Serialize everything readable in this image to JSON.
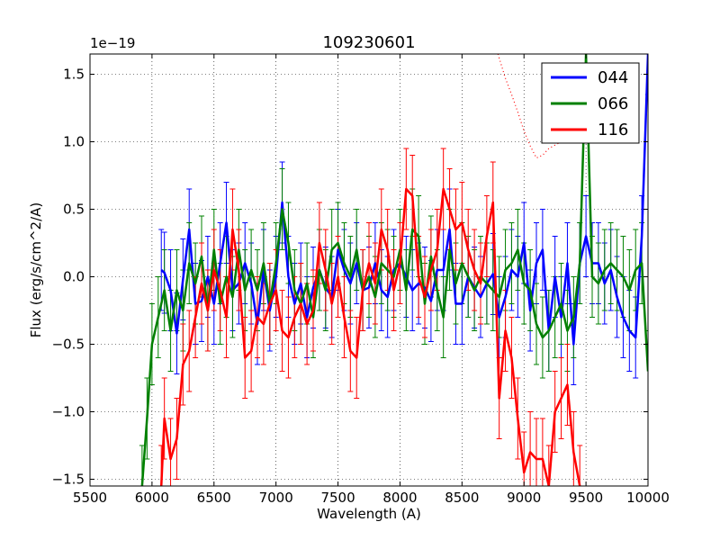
{
  "chart_data": {
    "type": "line",
    "title": "109230601",
    "xlabel": "Wavelength (A)",
    "ylabel": "Flux (erg/s/cm^2/A)",
    "offset_label": "1e−19",
    "xlim": [
      5500,
      10000
    ],
    "ylim": [
      -1.55,
      1.65
    ],
    "grid": true,
    "legend": "top-right",
    "x_ticks": [
      5500,
      6000,
      6500,
      7000,
      7500,
      8000,
      8500,
      9000,
      9500,
      10000
    ],
    "x_tick_labels": [
      "5500",
      "6000",
      "6500",
      "7000",
      "7500",
      "8000",
      "8500",
      "9000",
      "9500",
      "10000"
    ],
    "y_ticks": [
      -1.5,
      -1.0,
      -0.5,
      0.0,
      0.5,
      1.0,
      1.5
    ],
    "y_tick_labels": [
      "−1.5",
      "−1.0",
      "−0.5",
      "0.0",
      "0.5",
      "1.0",
      "1.5"
    ],
    "series": [
      {
        "name": "044",
        "color": "#0000ff",
        "x": [
          6075,
          6100,
          6150,
          6200,
          6250,
          6300,
          6350,
          6400,
          6450,
          6500,
          6550,
          6600,
          6650,
          6700,
          6750,
          6800,
          6850,
          6900,
          6950,
          7000,
          7050,
          7100,
          7150,
          7200,
          7250,
          7300,
          7350,
          7400,
          7450,
          7500,
          7550,
          7600,
          7650,
          7700,
          7750,
          7800,
          7850,
          7900,
          7950,
          8000,
          8050,
          8100,
          8150,
          8200,
          8250,
          8300,
          8350,
          8400,
          8450,
          8500,
          8550,
          8600,
          8650,
          8700,
          8750,
          8800,
          8850,
          8900,
          8950,
          9000,
          9050,
          9100,
          9150,
          9200,
          9250,
          9300,
          9350,
          9400,
          9450,
          9500,
          9550,
          9600,
          9650,
          9700,
          9750,
          9800,
          9850,
          9900,
          9950,
          10000
        ],
        "y": [
          0.05,
          0.03,
          -0.1,
          -0.42,
          -0.02,
          0.35,
          -0.2,
          -0.18,
          0.0,
          -0.2,
          0.1,
          0.4,
          -0.1,
          -0.05,
          0.1,
          -0.05,
          -0.35,
          0.05,
          -0.25,
          0.0,
          0.55,
          0.0,
          -0.2,
          -0.05,
          -0.3,
          -0.08,
          0.05,
          -0.08,
          -0.15,
          0.2,
          0.05,
          -0.05,
          0.1,
          -0.1,
          -0.08,
          0.1,
          -0.1,
          -0.15,
          0.05,
          0.1,
          0.0,
          -0.1,
          -0.05,
          -0.08,
          -0.18,
          0.05,
          0.05,
          0.35,
          -0.2,
          -0.2,
          0.0,
          -0.08,
          -0.15,
          -0.05,
          0.02,
          -0.3,
          -0.15,
          0.05,
          0.0,
          0.25,
          -0.25,
          0.1,
          0.2,
          -0.4,
          0.0,
          -0.3,
          0.1,
          -0.5,
          0.1,
          0.3,
          0.1,
          0.1,
          -0.05,
          0.05,
          -0.15,
          -0.3,
          -0.4,
          -0.45,
          0.3,
          1.65
        ]
      },
      {
        "name": "066",
        "color": "#008000",
        "x": [
          5920,
          5960,
          6000,
          6050,
          6100,
          6150,
          6200,
          6250,
          6300,
          6350,
          6400,
          6450,
          6500,
          6550,
          6600,
          6650,
          6700,
          6750,
          6800,
          6850,
          6900,
          6950,
          7000,
          7050,
          7100,
          7150,
          7200,
          7250,
          7300,
          7350,
          7400,
          7450,
          7500,
          7550,
          7600,
          7650,
          7700,
          7750,
          7800,
          7850,
          7900,
          7950,
          8000,
          8050,
          8100,
          8150,
          8200,
          8250,
          8300,
          8350,
          8400,
          8450,
          8500,
          8550,
          8600,
          8650,
          8700,
          8750,
          8800,
          8850,
          8900,
          8950,
          9000,
          9050,
          9100,
          9150,
          9200,
          9250,
          9300,
          9350,
          9400,
          9450,
          9500,
          9550,
          9600,
          9650,
          9700,
          9750,
          9800,
          9850,
          9900,
          9950,
          10000
        ],
        "y": [
          -1.55,
          -1.05,
          -0.5,
          -0.3,
          -0.1,
          -0.4,
          -0.1,
          -0.25,
          0.1,
          -0.05,
          0.15,
          -0.25,
          0.2,
          -0.2,
          0.0,
          -0.15,
          0.2,
          -0.1,
          0.05,
          -0.1,
          0.1,
          -0.2,
          0.1,
          0.5,
          0.25,
          -0.1,
          -0.2,
          -0.05,
          -0.3,
          0.05,
          -0.1,
          0.2,
          0.25,
          0.1,
          0.0,
          0.2,
          -0.1,
          0.0,
          -0.15,
          0.1,
          0.05,
          0.0,
          0.2,
          -0.1,
          0.35,
          0.3,
          -0.2,
          0.15,
          -0.1,
          -0.3,
          0.2,
          -0.05,
          0.1,
          0.0,
          -0.1,
          0.0,
          -0.05,
          -0.1,
          -0.15,
          0.05,
          0.1,
          0.2,
          -0.05,
          -0.1,
          -0.35,
          -0.45,
          -0.4,
          -0.3,
          -0.2,
          -0.4,
          -0.3,
          0.1,
          1.65,
          0.0,
          -0.05,
          0.05,
          0.1,
          0.05,
          0.0,
          -0.1,
          0.05,
          0.1,
          -0.7
        ]
      },
      {
        "name": "116",
        "color": "#ff0000",
        "x": [
          6075,
          6100,
          6150,
          6200,
          6250,
          6300,
          6350,
          6400,
          6450,
          6500,
          6550,
          6600,
          6650,
          6700,
          6750,
          6800,
          6850,
          6900,
          6950,
          7000,
          7050,
          7100,
          7150,
          7200,
          7250,
          7300,
          7350,
          7400,
          7450,
          7500,
          7550,
          7600,
          7650,
          7700,
          7750,
          7800,
          7850,
          7900,
          7950,
          8000,
          8050,
          8100,
          8150,
          8200,
          8250,
          8300,
          8350,
          8400,
          8450,
          8500,
          8550,
          8600,
          8650,
          8700,
          8750,
          8800,
          8850,
          8900,
          8950,
          9000,
          9050,
          9100,
          9150,
          9200,
          9250,
          9300,
          9350,
          9400,
          9450
        ],
        "y": [
          -1.55,
          -1.05,
          -1.35,
          -1.2,
          -0.65,
          -0.55,
          -0.3,
          -0.05,
          -0.25,
          0.05,
          -0.1,
          -0.3,
          0.35,
          0.05,
          -0.6,
          -0.55,
          -0.3,
          -0.35,
          -0.2,
          -0.1,
          -0.4,
          -0.45,
          -0.3,
          -0.2,
          -0.35,
          -0.25,
          0.25,
          0.05,
          -0.2,
          0.0,
          -0.3,
          -0.55,
          -0.6,
          -0.1,
          0.1,
          -0.05,
          0.35,
          0.2,
          -0.1,
          0.1,
          0.65,
          0.6,
          0.0,
          -0.15,
          0.05,
          0.2,
          0.65,
          0.5,
          0.35,
          0.4,
          0.2,
          0.05,
          -0.05,
          0.3,
          0.55,
          -0.9,
          -0.4,
          -0.6,
          -1.05,
          -1.45,
          -1.3,
          -1.35,
          -1.35,
          -1.55,
          -1.0,
          -0.9,
          -0.8,
          -1.3,
          -1.55
        ]
      }
    ],
    "dotted_curve": {
      "name": "116 upper error envelope",
      "color": "#ff0000",
      "x": [
        8790,
        8850,
        8900,
        8950,
        9000,
        9050,
        9100,
        9150,
        9200,
        9300,
        9400,
        9480
      ],
      "y": [
        1.65,
        1.47,
        1.35,
        1.22,
        1.08,
        0.97,
        0.88,
        0.9,
        0.95,
        1.0,
        1.02,
        1.0
      ]
    },
    "error_half_width": 0.3
  }
}
